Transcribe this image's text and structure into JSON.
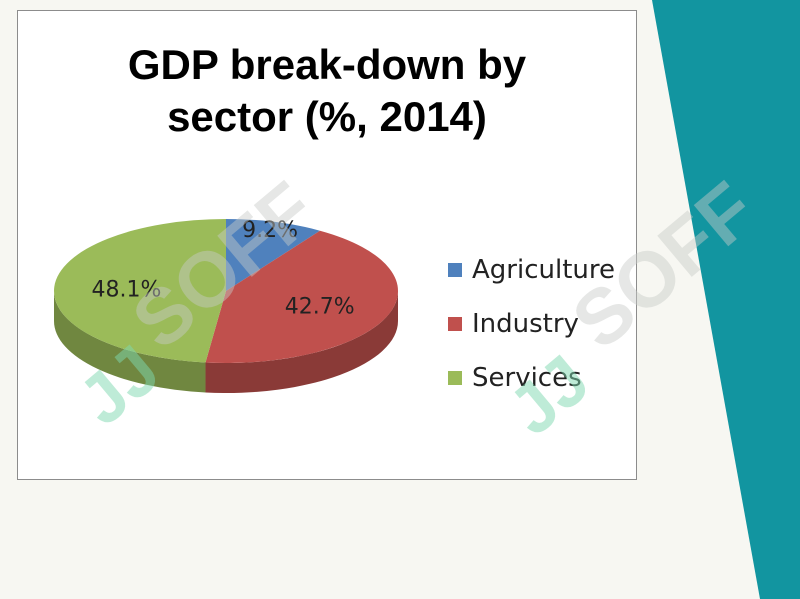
{
  "watermark": {
    "text": "SOFF",
    "mark": "JJ"
  },
  "colors": {
    "teal": "#1295a0",
    "agriculture": "#4f81bd",
    "industry": "#c0504d",
    "services": "#9bbb59"
  },
  "chart_data": {
    "type": "pie",
    "title": "GDP break-down by sector (%, 2014)",
    "title_lines": [
      "GDP break-down by",
      "sector (%, 2014)"
    ],
    "legend_position": "right",
    "slices": [
      {
        "label": "Agriculture",
        "value": 9.2,
        "display": "9.2%",
        "color": "#4f81bd"
      },
      {
        "label": "Industry",
        "value": 42.7,
        "display": "42.7%",
        "color": "#c0504d"
      },
      {
        "label": "Services",
        "value": 48.1,
        "display": "48.1%",
        "color": "#9bbb59"
      }
    ],
    "style": "3d"
  }
}
